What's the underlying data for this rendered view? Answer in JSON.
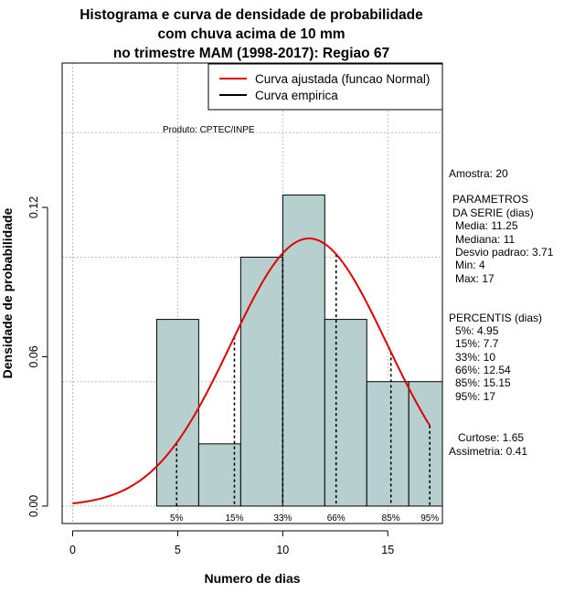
{
  "title": {
    "line1": "Histograma e curva de densidade de probabilidade",
    "line2": "com chuva acima de 10 mm",
    "line3": "no trimestre MAM (1998-2017): Regiao 67"
  },
  "legend": {
    "fitted_label": "Curva ajustada (funcao Normal)",
    "empirical_label": "Curva empirica"
  },
  "product_note": "Produto: CPTEC/INPE",
  "side_panel": {
    "sample": "Amostra: 20",
    "params_title": "PARAMETROS",
    "params_subtitle": "DA SERIE (dias)",
    "mean": "Media: 11.25",
    "median": "Mediana: 11",
    "stdev": "Desvio padrao: 3.71",
    "min": "Min: 4",
    "max": "Max: 17",
    "percentiles_title": "PERCENTIS (dias)",
    "p5": "5%: 4.95",
    "p15": "15%: 7.7",
    "p33": "33%: 10",
    "p66": "66%: 12.54",
    "p85": "85%: 15.15",
    "p95": "95%: 17",
    "kurtosis": "Curtose: 1.65",
    "skewness": "Assimetria: 0.41"
  },
  "chart_data": {
    "type": "bar",
    "title": "Histograma e curva de densidade de probabilidade com chuva acima de 10 mm no trimestre MAM (1998-2017): Regiao 67",
    "xlabel": "Numero de dias",
    "ylabel": "Densidade de probabilidade",
    "xlim": [
      -0.5,
      17.6
    ],
    "ylim": [
      -0.007,
      0.178
    ],
    "x_ticks": [
      0,
      5,
      10,
      15
    ],
    "y_ticks": [
      0.0,
      0.06,
      0.12
    ],
    "y_tick_labels": [
      "0.00",
      "0.06",
      "0.12"
    ],
    "grid": true,
    "legend_position": "top-right",
    "bins": [
      {
        "x0": 4,
        "x1": 6,
        "density": 0.075
      },
      {
        "x0": 6,
        "x1": 8,
        "density": 0.025
      },
      {
        "x0": 8,
        "x1": 10,
        "density": 0.1
      },
      {
        "x0": 10,
        "x1": 12,
        "density": 0.125
      },
      {
        "x0": 12,
        "x1": 14,
        "density": 0.075
      },
      {
        "x0": 14,
        "x1": 16,
        "density": 0.05
      },
      {
        "x0": 16,
        "x1": 18,
        "density": 0.05
      }
    ],
    "bar_color": "#b7cfcf",
    "fitted_curve": {
      "name": "Curva ajustada (funcao Normal)",
      "distribution": "normal",
      "mean": 11.25,
      "sd": 3.71,
      "x_range": [
        0,
        17
      ],
      "color": "#dd0000"
    },
    "percentiles": [
      {
        "label": "5%",
        "x": 4.95
      },
      {
        "label": "15%",
        "x": 7.7
      },
      {
        "label": "33%",
        "x": 10
      },
      {
        "label": "66%",
        "x": 12.54
      },
      {
        "label": "85%",
        "x": 15.15
      },
      {
        "label": "95%",
        "x": 17
      }
    ]
  }
}
